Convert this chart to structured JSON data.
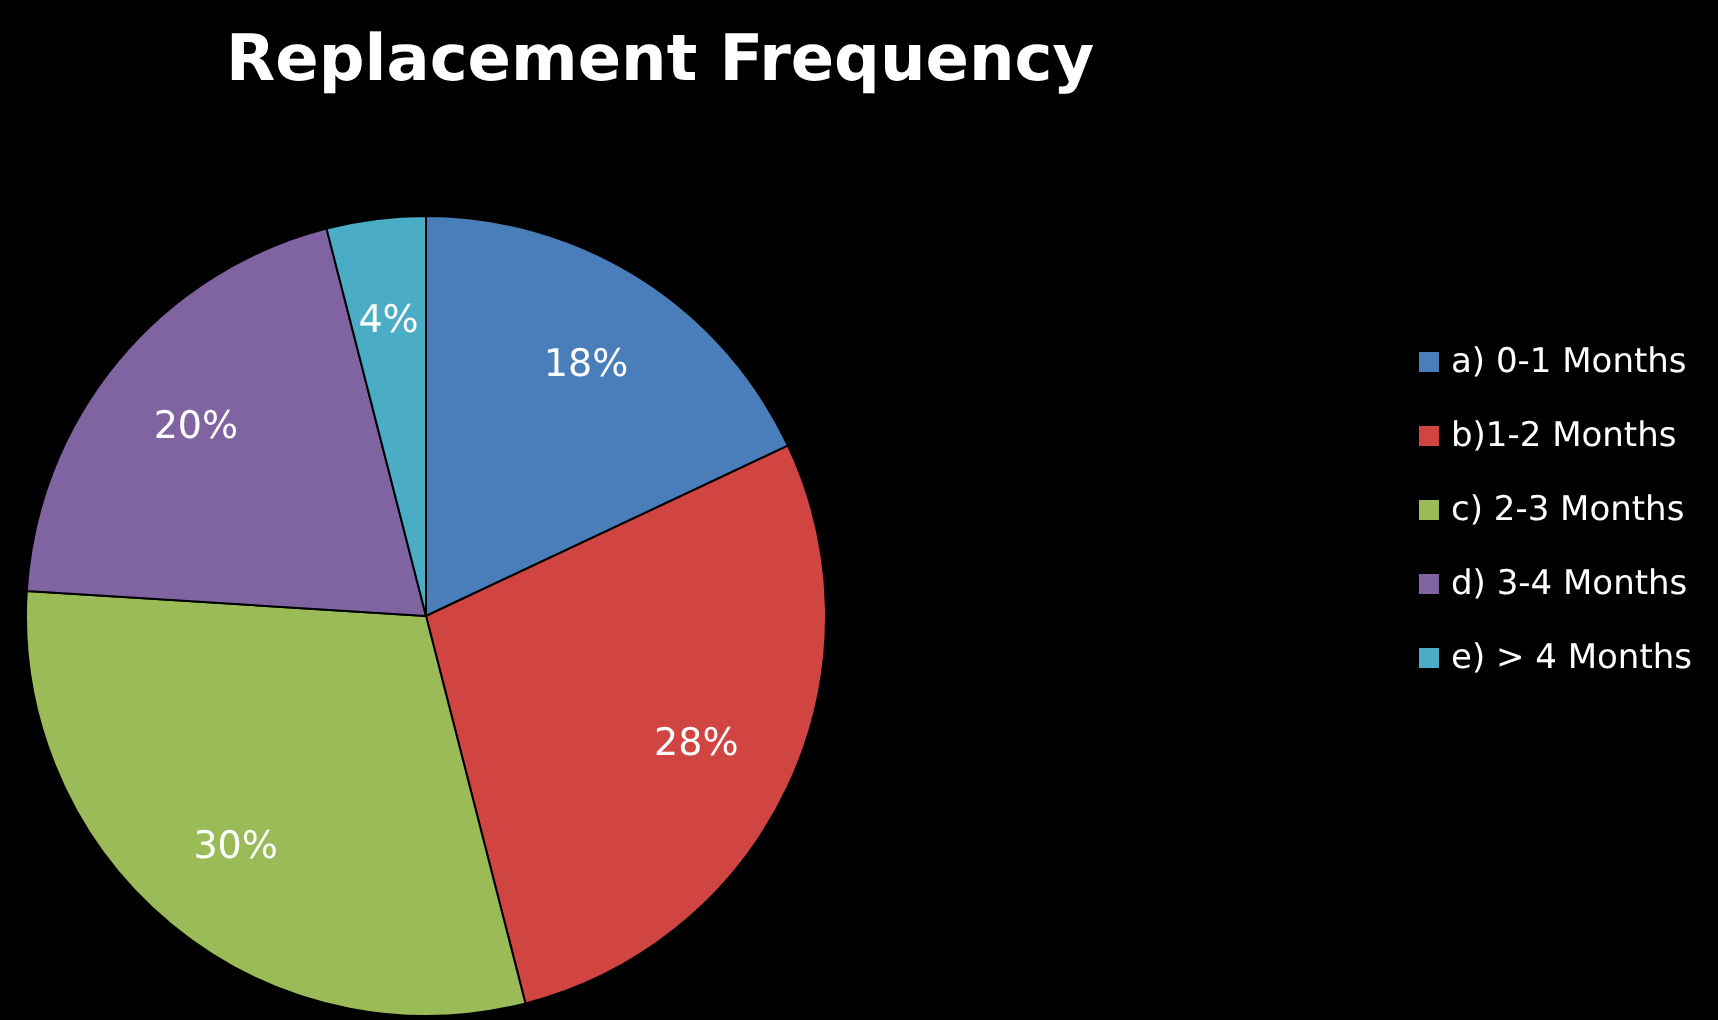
{
  "chart_data": {
    "type": "pie",
    "title": "Replacement Frequency",
    "categories": [
      "a) 0-1 Months",
      "b)1-2 Months",
      "c) 2-3 Months",
      "d) 3-4 Months",
      "e) > 4 Months"
    ],
    "values": [
      18,
      28,
      30,
      20,
      4
    ],
    "value_labels": [
      "18%",
      "28%",
      "30%",
      "20%",
      "4%"
    ],
    "colors": [
      "#4a7ebb",
      "#d04541",
      "#9bbb59",
      "#8064a2",
      "#4bacc6"
    ],
    "legend": "right"
  }
}
